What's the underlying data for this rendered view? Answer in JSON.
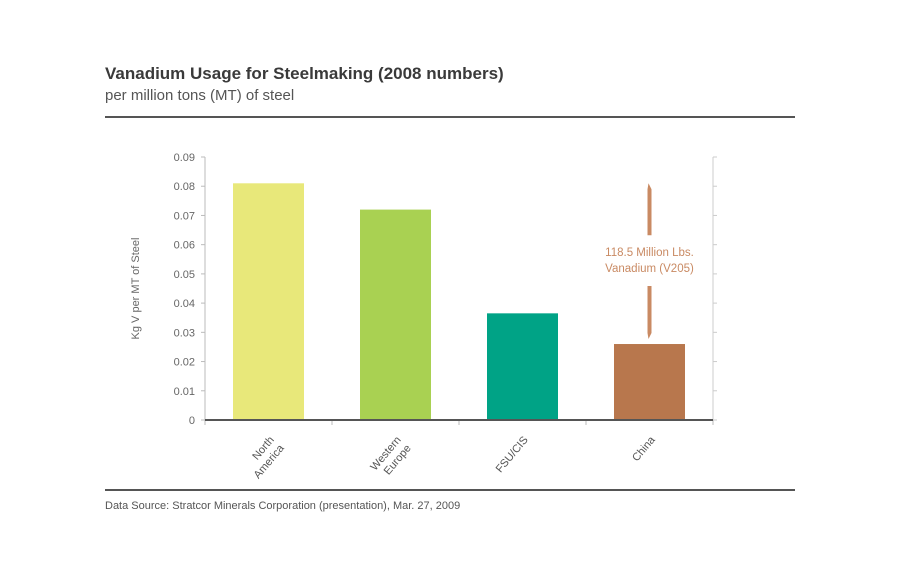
{
  "title": "Vanadium Usage for Steelmaking (2008 numbers)",
  "subtitle": "per million tons (MT) of steel",
  "source": "Data Source: Stratcor Minerals Corporation (presentation), Mar. 27, 2009",
  "chart_data": {
    "type": "bar",
    "categories": [
      "North America",
      "Western Europe",
      "FSU/CIS",
      "China"
    ],
    "values": [
      0.081,
      0.072,
      0.0365,
      0.026
    ],
    "colors": [
      "#e8e87a",
      "#a9d152",
      "#00a386",
      "#b8774d"
    ],
    "ylabel": "Kg V per MT of Steel",
    "xlabel": "",
    "ylim": [
      0,
      0.09
    ],
    "yticks": [
      "0",
      "0.01",
      "0.02",
      "0.03",
      "0.04",
      "0.05",
      "0.06",
      "0.07",
      "0.08",
      "0.09"
    ],
    "grid": false,
    "annotation": {
      "category": "China",
      "lines": [
        "118.5 Million Lbs.",
        "Vanadium (V205)"
      ],
      "color": "#c98a63",
      "from": 0.026,
      "to": 0.081
    }
  }
}
